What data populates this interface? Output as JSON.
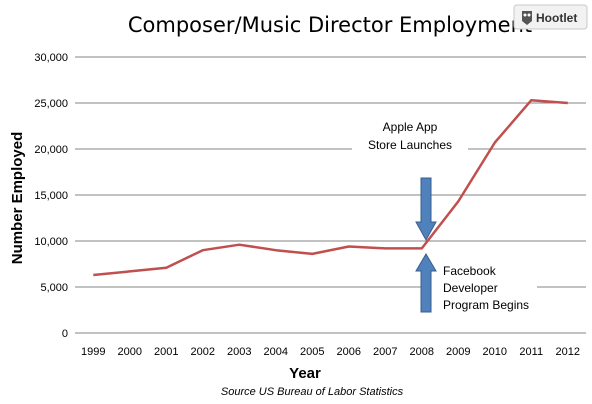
{
  "chart_data": {
    "type": "line",
    "title": "Composer/Music Director Employment",
    "xlabel": "Year",
    "ylabel": "Number Employed",
    "source": "Source US Bureau of Labor Statistics",
    "x": [
      "1999",
      "2000",
      "2001",
      "2002",
      "2003",
      "2004",
      "2005",
      "2006",
      "2007",
      "2008",
      "2009",
      "2010",
      "2011",
      "2012"
    ],
    "series": [
      {
        "values": [
          6300,
          6700,
          7100,
          9000,
          9600,
          9000,
          8600,
          9400,
          9200,
          9200,
          14300,
          20700,
          25300,
          25000
        ]
      }
    ],
    "ylim": [
      0,
      30000
    ],
    "yticks": [
      0,
      5000,
      10000,
      15000,
      20000,
      25000,
      30000
    ],
    "ytick_labels": [
      "0",
      "5,000",
      "10,000",
      "15,000",
      "20,000",
      "25,000",
      "30,000"
    ],
    "grid": true,
    "line_color": "#c0504d",
    "annotations": [
      {
        "lines": [
          "Apple App",
          "Store Launches"
        ],
        "x": "2008",
        "arrow": "down"
      },
      {
        "lines": [
          "Facebook",
          "Developer",
          "Program Begins"
        ],
        "x": "2008",
        "arrow": "up"
      }
    ]
  },
  "badge": {
    "label": "Hootlet"
  },
  "colors": {
    "arrow_fill": "#4f81bd",
    "arrow_stroke": "#385d8a",
    "grid": "#868686"
  }
}
